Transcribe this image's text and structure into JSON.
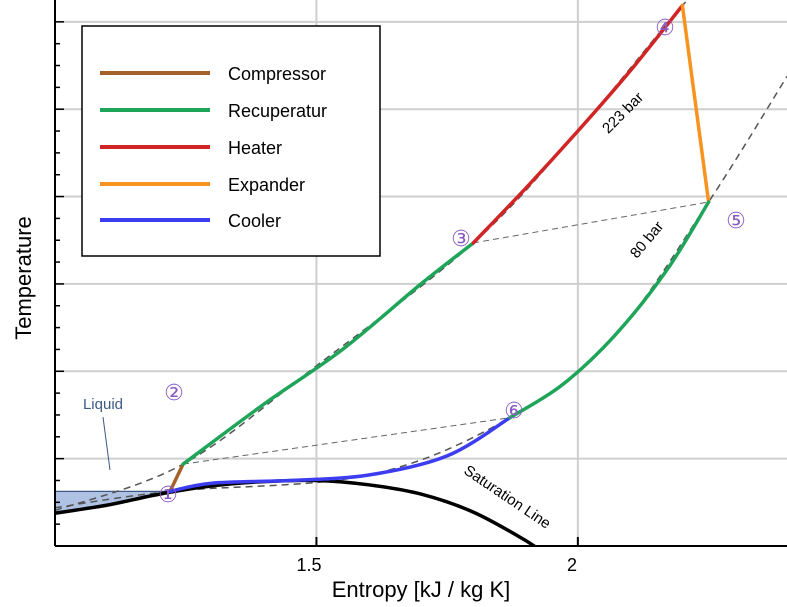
{
  "chart_data": {
    "type": "line",
    "xlabel": "Entropy [kJ / kg K]",
    "ylabel": "Temperature",
    "xlim": [
      1.0,
      2.4
    ],
    "ylim": [
      0,
      10
    ],
    "x_ticks": [
      1.5,
      2
    ],
    "x_tick_labels": [
      "1.5",
      "2"
    ],
    "grid": true,
    "legend_position": "top-left",
    "colors": {
      "compressor": "#a5612a",
      "recuperatur": "#1fa559",
      "heater": "#d12424",
      "expander": "#f7931e",
      "cooler": "#3c3cf0",
      "saturation": "#000000",
      "isobar": "#555555",
      "liquid": "#6f8fcc",
      "state_label": "#8a5cc2"
    },
    "series": [
      {
        "name": "Compressor",
        "key": "compressor",
        "x": [
          1.22,
          1.245
        ],
        "y": [
          1.0,
          1.5
        ]
      },
      {
        "name": "Recuperatur",
        "key": "recuperatur",
        "x": [
          1.245,
          1.4,
          1.55,
          1.7,
          1.8
        ],
        "y": [
          1.5,
          2.6,
          3.6,
          4.8,
          5.55
        ]
      },
      {
        "name": "Heater",
        "key": "heater",
        "x": [
          1.8,
          1.9,
          2.0,
          2.1,
          2.2
        ],
        "y": [
          5.55,
          6.55,
          7.6,
          8.7,
          9.9
        ]
      },
      {
        "name": "Expander",
        "key": "expander",
        "x": [
          2.2,
          2.25
        ],
        "y": [
          9.9,
          6.3
        ]
      },
      {
        "name": "Cooler",
        "key": "cooler",
        "x": [
          1.22,
          1.3,
          1.45,
          1.6,
          1.75,
          1.87
        ],
        "y": [
          1.0,
          1.15,
          1.2,
          1.3,
          1.65,
          2.35
        ]
      },
      {
        "name": "Recuperatur",
        "key": "recuperatur",
        "x": [
          1.87,
          1.97,
          2.07,
          2.17,
          2.25
        ],
        "y": [
          2.35,
          2.95,
          3.85,
          5.05,
          6.3
        ]
      }
    ],
    "saturation_line": {
      "label": "Saturation Line",
      "x": [
        1.0,
        1.1,
        1.2,
        1.3,
        1.4,
        1.5,
        1.6,
        1.7,
        1.8,
        1.9,
        1.96
      ],
      "y": [
        0.6,
        0.75,
        0.95,
        1.1,
        1.18,
        1.2,
        1.12,
        0.95,
        0.62,
        0.1,
        -0.3
      ]
    },
    "isobars": [
      {
        "label": "223 bar",
        "x": [
          1.0,
          1.245,
          1.5,
          1.8,
          2.0,
          2.2,
          2.28
        ],
        "y": [
          0.65,
          1.5,
          3.3,
          5.55,
          7.6,
          9.9,
          10.6
        ]
      },
      {
        "label": "80 bar",
        "x": [
          1.0,
          1.22,
          1.6,
          1.87,
          2.07,
          2.25,
          2.4
        ],
        "y": [
          0.7,
          1.0,
          1.3,
          2.35,
          3.85,
          6.3,
          8.6
        ]
      }
    ],
    "connectors": [
      {
        "x": [
          1.245,
          1.87
        ],
        "y": [
          1.5,
          2.35
        ]
      },
      {
        "x": [
          1.8,
          2.25
        ],
        "y": [
          5.55,
          6.3
        ]
      }
    ],
    "liquid_region": {
      "label": "Liquid",
      "x_max": 1.22,
      "y_max": 1.0
    },
    "states": [
      {
        "label": "①",
        "x": 1.22,
        "y": 1.0
      },
      {
        "label": "②",
        "x": 1.245,
        "y": 1.5
      },
      {
        "label": "③",
        "x": 1.8,
        "y": 5.55
      },
      {
        "label": "④",
        "x": 2.2,
        "y": 9.9
      },
      {
        "label": "⑤",
        "x": 2.25,
        "y": 6.3
      },
      {
        "label": "⑥",
        "x": 1.87,
        "y": 2.35
      }
    ],
    "legend": [
      "Compressor",
      "Recuperatur",
      "Heater",
      "Expander",
      "Cooler"
    ]
  }
}
